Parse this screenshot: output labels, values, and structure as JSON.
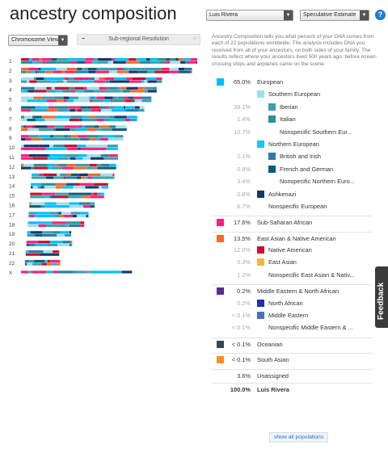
{
  "header": {
    "title": "ancestry composition",
    "user_select": "Luis Rivera",
    "estimate_select": "Speculative Estimate",
    "help_label": "?"
  },
  "controls": {
    "view_select": "Chromosome View",
    "resolution_label": "Sub-regional Resolution",
    "minus": "−",
    "plus": "+"
  },
  "description": "Ancestry Composition tells you what percent of your DNA comes from each of 22 populations worldwide. The analysis includes DNA you received from all of your ancestors, on both sides of your family. The results reflect where your ancestors lived 500 years ago, before ocean-crossing ships and airplanes came on the scene.",
  "chromosomes": [
    {
      "label": "1",
      "length": 1.0
    },
    {
      "label": "2",
      "length": 0.97
    },
    {
      "label": "3",
      "length": 0.8
    },
    {
      "label": "4",
      "length": 0.77
    },
    {
      "label": "5",
      "length": 0.74
    },
    {
      "label": "6",
      "length": 0.7
    },
    {
      "label": "7",
      "length": 0.66
    },
    {
      "label": "8",
      "length": 0.6
    },
    {
      "label": "9",
      "length": 0.58
    },
    {
      "label": "10",
      "length": 0.55
    },
    {
      "label": "11",
      "length": 0.55
    },
    {
      "label": "12",
      "length": 0.54
    },
    {
      "label": "13",
      "length": 0.47
    },
    {
      "label": "14",
      "length": 0.44
    },
    {
      "label": "15",
      "length": 0.42
    },
    {
      "label": "16",
      "length": 0.37
    },
    {
      "label": "17",
      "length": 0.34
    },
    {
      "label": "18",
      "length": 0.32
    },
    {
      "label": "19",
      "length": 0.25
    },
    {
      "label": "20",
      "length": 0.26
    },
    {
      "label": "21",
      "length": 0.19
    },
    {
      "label": "22",
      "length": 0.2
    },
    {
      "label": "X",
      "length": 0.63
    }
  ],
  "colors": {
    "european": "#00bfff",
    "southern_european": "#9fe0e6",
    "iberian": "#3aa0ad",
    "italian": "#2f8f9b",
    "northern_european": "#1ec3f0",
    "british_irish": "#2a7fa5",
    "french_german": "#0e5e78",
    "ashkenazi": "#14386e",
    "sub_saharan": "#ff1f7a",
    "east_asian_native": "#f26b2c",
    "native_american": "#c8102e",
    "east_asian": "#f5b445",
    "middle_eastern_na": "#5a2a8c",
    "north_african": "#2130b5",
    "middle_eastern": "#4b72c0",
    "oceanian": "#37474f",
    "south_asian": "#f7921e"
  },
  "composition": [
    {
      "pct": "65.0%",
      "name": "European",
      "level": 0,
      "color": "#00bfff"
    },
    {
      "pct": "",
      "name": "Southern European",
      "level": 1,
      "color": "#9fe0e6"
    },
    {
      "pct": "39.1%",
      "name": "Iberian",
      "level": 2,
      "color": "#3aa0ad"
    },
    {
      "pct": "1.4%",
      "name": "Italian",
      "level": 2,
      "color": "#2f8f9b"
    },
    {
      "pct": "10.7%",
      "name": "Nonspecific Southern Eur...",
      "level": 3,
      "color": ""
    },
    {
      "pct": "",
      "name": "Northern European",
      "level": 1,
      "color": "#1ec3f0"
    },
    {
      "pct": "2.1%",
      "name": "British and Irish",
      "level": 2,
      "color": "#2a7fa5"
    },
    {
      "pct": "0.8%",
      "name": "French and German",
      "level": 2,
      "color": "#0e5e78"
    },
    {
      "pct": "3.4%",
      "name": "Nonspecific Northern Euro...",
      "level": 3,
      "color": ""
    },
    {
      "pct": "0.8%",
      "name": "Ashkenazi",
      "level": 1,
      "color": "#14386e"
    },
    {
      "pct": "6.7%",
      "name": "Nonspecific European",
      "level": 1,
      "color": ""
    },
    {
      "pct": "17.6%",
      "name": "Sub-Saharan African",
      "level": 0,
      "color": "#ff1f7a",
      "divider": true
    },
    {
      "pct": "13.5%",
      "name": "East Asian & Native American",
      "level": 0,
      "color": "#f26b2c",
      "divider": true
    },
    {
      "pct": "12.0%",
      "name": "Native American",
      "level": 1,
      "color": "#c8102e"
    },
    {
      "pct": "0.3%",
      "name": "East Asian",
      "level": 1,
      "color": "#f5b445"
    },
    {
      "pct": "1.2%",
      "name": "Nonspecific East Asian & Nativ...",
      "level": 1,
      "color": ""
    },
    {
      "pct": "0.2%",
      "name": "Middle Eastern & North African",
      "level": 0,
      "color": "#5a2a8c",
      "divider": true
    },
    {
      "pct": "0.2%",
      "name": "North African",
      "level": 1,
      "color": "#2130b5"
    },
    {
      "pct": "< 0.1%",
      "name": "Middle Eastern",
      "level": 1,
      "color": "#4b72c0"
    },
    {
      "pct": "< 0.1%",
      "name": "Nonspecific Middle Eastern & ...",
      "level": 1,
      "color": ""
    },
    {
      "pct": "< 0.1%",
      "name": "Oceanian",
      "level": 0,
      "color": "#37474f",
      "divider": true
    },
    {
      "pct": "< 0.1%",
      "name": "South Asian",
      "level": 0,
      "color": "#f7921e",
      "divider": true
    },
    {
      "pct": "3.6%",
      "name": "Unassigned",
      "level": 0,
      "color": "",
      "divider": true
    },
    {
      "pct": "100.0%",
      "name": "Luis Rivera",
      "level": 0,
      "color": "",
      "total": true
    }
  ],
  "show_all_label": "show all populations",
  "feedback_label": "Feedback"
}
